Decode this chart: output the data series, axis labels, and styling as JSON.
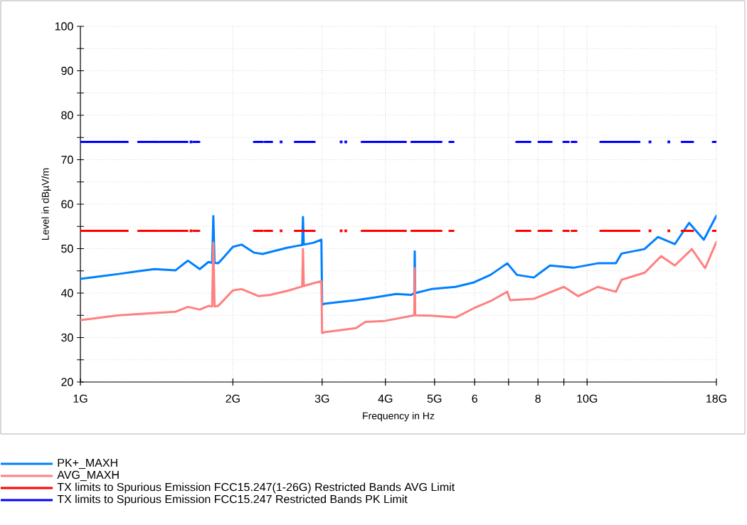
{
  "chart_data": {
    "type": "line",
    "xlabel": "Frequency in Hz",
    "ylabel": "Level in dBµV/m",
    "xlim": [
      1,
      18
    ],
    "ylim": [
      20,
      100
    ],
    "log": "x",
    "grid": true,
    "legend": "bottom",
    "xticks": [
      {
        "value": 1,
        "label": "1G"
      },
      {
        "value": 2,
        "label": "2G"
      },
      {
        "value": 3,
        "label": "3G"
      },
      {
        "value": 4,
        "label": "4G"
      },
      {
        "value": 5,
        "label": "5G"
      },
      6,
      {
        "value": 7,
        "label": null
      },
      8,
      {
        "value": 9,
        "label": null
      },
      {
        "value": 10,
        "label": "10G"
      },
      {
        "value": 18,
        "label": "18G"
      }
    ],
    "yticks": [
      20,
      {
        "value": 25,
        "label": null
      },
      30,
      {
        "value": 35,
        "label": null
      },
      40,
      {
        "value": 45,
        "label": null
      },
      50,
      {
        "value": 55,
        "label": null
      },
      60,
      {
        "value": 65,
        "label": null
      },
      70,
      {
        "value": 75,
        "label": null
      },
      80,
      {
        "value": 85,
        "label": null
      },
      90,
      {
        "value": 95,
        "label": null
      },
      100
    ],
    "series": [
      {
        "name": "PK+_MAXH",
        "color": "#0080ff",
        "x": [
          1.0,
          1.1,
          1.19,
          1.3,
          1.4,
          1.54,
          1.63,
          1.72,
          1.79,
          1.82,
          1.83,
          1.84,
          1.87,
          1.91,
          2.0,
          2.08,
          2.2,
          2.29,
          2.4,
          2.56,
          2.7,
          2.74,
          2.75,
          2.76,
          2.88,
          2.99,
          3.0,
          3.03,
          3.2,
          3.5,
          3.8,
          4.2,
          4.5,
          4.56,
          4.57,
          4.58,
          4.93,
          5.5,
          5.98,
          6.45,
          6.96,
          7.27,
          7.85,
          8.45,
          9.4,
          10.5,
          11.4,
          11.7,
          12.98,
          13.8,
          14.9,
          15.9,
          17.0,
          18.0
        ],
        "values": [
          43.2,
          43.8,
          44.3,
          44.9,
          45.4,
          45.1,
          47.3,
          45.4,
          47.0,
          46.8,
          57.3,
          46.8,
          46.7,
          47.8,
          50.4,
          50.9,
          49.1,
          48.8,
          49.4,
          50.2,
          50.7,
          50.8,
          57.1,
          50.9,
          51.3,
          52.0,
          37.4,
          37.6,
          37.9,
          38.4,
          39.0,
          39.8,
          39.6,
          40.0,
          49.4,
          40.0,
          40.9,
          41.4,
          42.4,
          44.1,
          46.7,
          44.1,
          43.5,
          46.2,
          45.7,
          46.7,
          46.7,
          48.9,
          49.9,
          52.6,
          51.0,
          55.8,
          52.0,
          57.4
        ]
      },
      {
        "name": "AVG_MAXH",
        "color": "#ff8080",
        "x": [
          1.0,
          1.19,
          1.4,
          1.54,
          1.63,
          1.72,
          1.79,
          1.82,
          1.83,
          1.84,
          1.87,
          2.0,
          2.08,
          2.25,
          2.37,
          2.58,
          2.74,
          2.75,
          2.76,
          2.88,
          2.99,
          3.0,
          3.03,
          3.5,
          3.65,
          3.97,
          4.56,
          4.57,
          4.58,
          4.93,
          5.5,
          5.98,
          6.45,
          6.96,
          7.05,
          7.85,
          9.0,
          9.6,
          10.5,
          11.4,
          11.7,
          13.0,
          14.0,
          14.9,
          16.1,
          17.1,
          18.0
        ],
        "values": [
          33.9,
          35.0,
          35.5,
          35.8,
          36.9,
          36.3,
          37.1,
          37.0,
          51.3,
          37.0,
          37.1,
          40.6,
          40.9,
          39.3,
          39.6,
          40.6,
          41.5,
          49.9,
          41.6,
          42.2,
          42.7,
          31.0,
          31.2,
          32.1,
          33.5,
          33.7,
          35.0,
          45.6,
          35.0,
          34.9,
          34.5,
          36.6,
          38.2,
          40.3,
          38.4,
          38.7,
          41.4,
          39.3,
          41.4,
          40.3,
          43.0,
          44.6,
          48.3,
          46.2,
          49.9,
          45.6,
          51.5
        ]
      },
      {
        "name": "TX limits to Spurious Emission FCC15.247(1-26G) Restricted Bands AVG Limit",
        "color": "#ff0000",
        "x": [
          1.0,
          1.24,
          1.27,
          1.3,
          1.427,
          1.431,
          1.435,
          1.6265,
          1.65,
          1.671,
          1.717,
          1.9,
          2.2,
          2.29,
          2.3,
          2.31,
          2.39,
          2.5,
          2.65,
          2.9,
          3.2,
          3.59,
          4.39,
          4.45,
          4.5,
          5.16,
          5.25,
          5.35,
          5.45,
          6.5,
          7.25,
          7.73,
          7.9,
          8.02,
          8.51,
          8.8,
          8.98,
          9.2,
          9.26,
          9.32,
          9.53,
          10.0,
          10.62,
          12.69,
          14.0,
          15.37,
          16.19,
          17.0,
          17.71,
          18.0
        ],
        "values": [
          54,
          54,
          null,
          54,
          54,
          null,
          54,
          54,
          null,
          54,
          54,
          null,
          54,
          54,
          null,
          54,
          54,
          null,
          54,
          54,
          null,
          54,
          54,
          null,
          54,
          54,
          null,
          54,
          54,
          null,
          54,
          54,
          null,
          54,
          54,
          null,
          54,
          54,
          null,
          54,
          54,
          null,
          54,
          54,
          null,
          54,
          54,
          null,
          54,
          54
        ]
      },
      {
        "name": "TX limits to Spurious Emission FCC15.247 Restricted Bands PK Limit",
        "color": "#0000ff",
        "x": [
          1.0,
          1.24,
          1.27,
          1.3,
          1.427,
          1.431,
          1.435,
          1.6265,
          1.65,
          1.671,
          1.717,
          1.9,
          2.2,
          2.29,
          2.3,
          2.31,
          2.39,
          2.5,
          2.65,
          2.9,
          3.2,
          3.59,
          4.39,
          4.45,
          4.5,
          5.16,
          5.25,
          5.35,
          5.45,
          6.5,
          7.25,
          7.73,
          7.9,
          8.02,
          8.51,
          8.8,
          8.98,
          9.2,
          9.26,
          9.32,
          9.53,
          10.0,
          10.62,
          12.69,
          14.0,
          15.37,
          16.19,
          17.0,
          17.71,
          18.0
        ],
        "values": [
          74,
          74,
          null,
          74,
          74,
          null,
          74,
          74,
          null,
          74,
          74,
          null,
          74,
          74,
          null,
          74,
          74,
          null,
          74,
          74,
          null,
          74,
          74,
          null,
          74,
          74,
          null,
          74,
          74,
          null,
          74,
          74,
          null,
          74,
          74,
          null,
          74,
          74,
          null,
          74,
          74,
          null,
          74,
          74,
          null,
          74,
          74,
          null,
          74,
          74
        ]
      },
      {
        "type": "scatter",
        "marker": "square",
        "color": "#ff0000",
        "x": [
          1.654,
          2.49,
          3.271,
          3.34,
          13.31,
          14.5
        ],
        "values": [
          54,
          54,
          54,
          54,
          54,
          54
        ]
      },
      {
        "type": "scatter",
        "marker": "square",
        "color": "#0000ff",
        "x": [
          1.654,
          2.49,
          3.271,
          3.34,
          13.31,
          14.5
        ],
        "values": [
          74,
          74,
          74,
          74,
          74,
          74
        ]
      }
    ]
  }
}
